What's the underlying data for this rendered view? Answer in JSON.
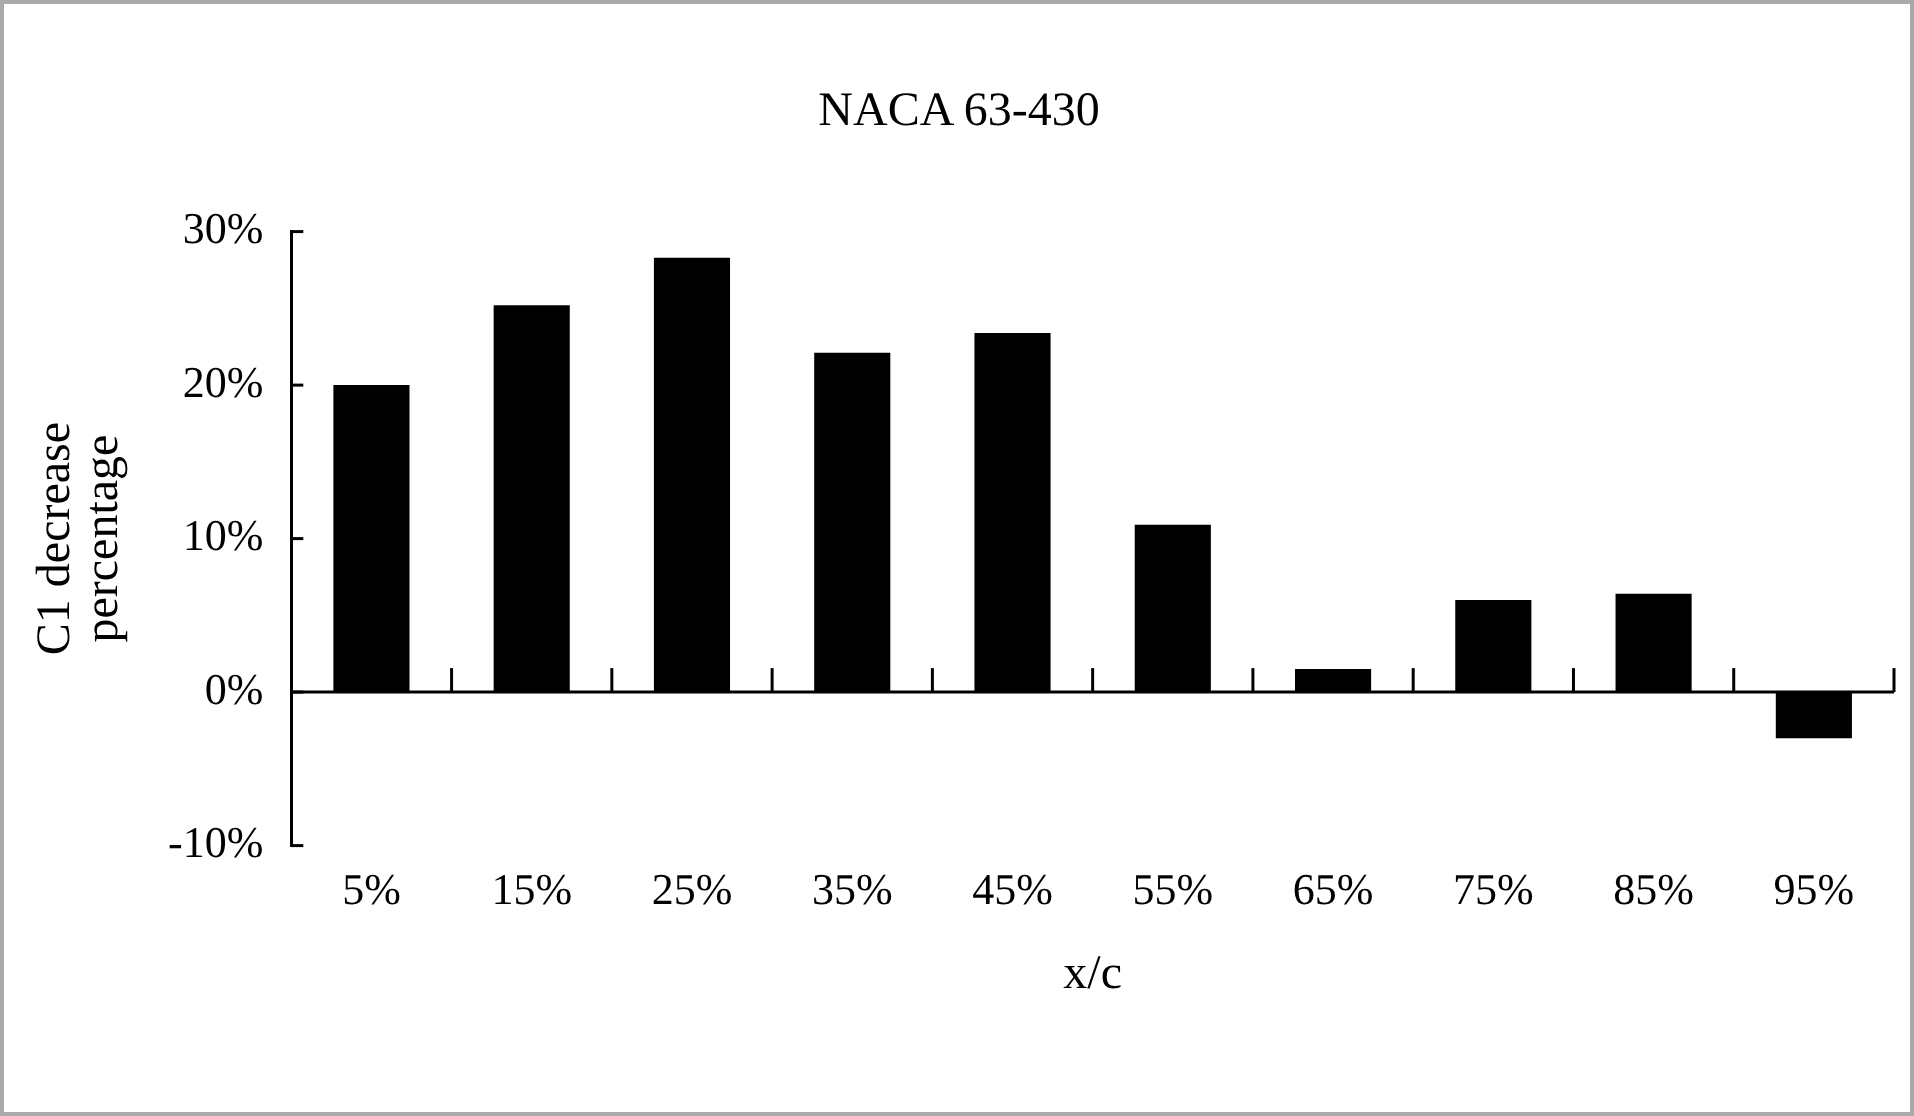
{
  "chart_data": {
    "type": "bar",
    "title": "NACA 63-430",
    "xlabel": "x/c",
    "ylabel": "C1 decrease percentage",
    "categories": [
      "5%",
      "15%",
      "25%",
      "35%",
      "45%",
      "55%",
      "65%",
      "75%",
      "85%",
      "95%"
    ],
    "values": [
      20,
      25.2,
      28.3,
      22.1,
      23.4,
      10.9,
      1.5,
      6,
      6.4,
      -3
    ],
    "color": "#000000",
    "ylim": [
      -10,
      30
    ],
    "yticks": [
      {
        "value": -10,
        "label": "-10%"
      },
      {
        "value": 0,
        "label": "0%"
      },
      {
        "value": 10,
        "label": "10%"
      },
      {
        "value": 20,
        "label": "20%"
      },
      {
        "value": 30,
        "label": "30%"
      }
    ],
    "legend": false
  }
}
